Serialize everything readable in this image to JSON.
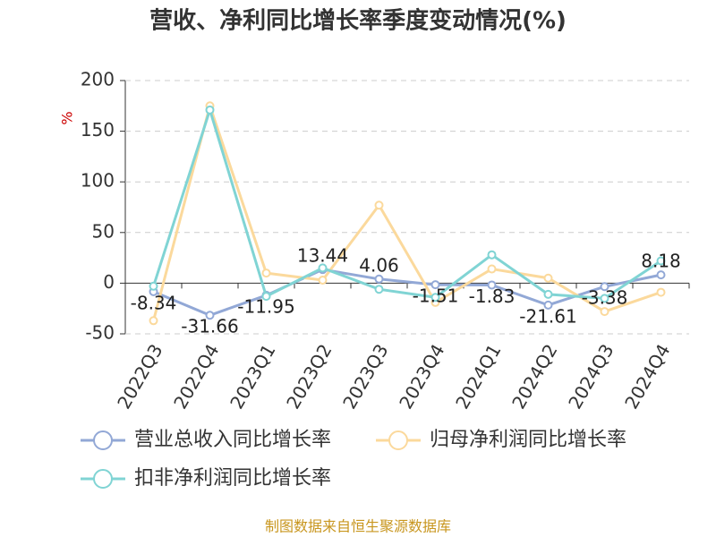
{
  "chart_data": {
    "type": "line",
    "title": "营收、净利同比增长率季度变动情况(%)",
    "y_label": "%",
    "categories": [
      "2022Q3",
      "2022Q4",
      "2023Q1",
      "2023Q2",
      "2023Q3",
      "2023Q4",
      "2024Q1",
      "2024Q2",
      "2024Q3",
      "2024Q4"
    ],
    "series": [
      {
        "name": "营业总收入同比增长率",
        "color": "#92a8d6",
        "values": [
          -8.34,
          -31.66,
          -11.95,
          13.44,
          4.06,
          -1.51,
          -1.83,
          -21.61,
          -3.38,
          8.18
        ],
        "show_labels": true
      },
      {
        "name": "归母净利润同比增长率",
        "color": "#fbd99c",
        "values": [
          -37,
          175,
          10,
          3,
          77,
          -19,
          14,
          5,
          -28,
          -9
        ],
        "show_labels": false
      },
      {
        "name": "扣非净利润同比增长率",
        "color": "#80d4d4",
        "values": [
          -3,
          171,
          -13,
          15,
          -6,
          -14,
          28,
          -11,
          -15,
          22
        ],
        "show_labels": false
      }
    ],
    "ylim": [
      -50,
      200
    ],
    "yticks": [
      -50,
      0,
      50,
      100,
      150,
      200
    ],
    "grid": true,
    "source": "制图数据来自恒生聚源数据库"
  }
}
